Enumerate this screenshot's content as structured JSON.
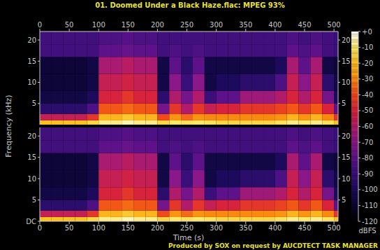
{
  "chart_data": {
    "type": "heatmap",
    "title": "01. Doomed Under a Black Haze.flac: MPEG 93%",
    "xlabel": "Time (s)",
    "ylabel": "Frequency (kHz)",
    "footer": "Produced by SOX on request by AUCDTECT TASK MANAGER",
    "xlim": [
      0,
      507
    ],
    "xticks": [
      0,
      50,
      100,
      150,
      200,
      250,
      300,
      350,
      400,
      450,
      500
    ],
    "x_edges": [
      0,
      20,
      40,
      60,
      80,
      100,
      120,
      140,
      160,
      180,
      200,
      220,
      240,
      260,
      280,
      300,
      320,
      340,
      360,
      380,
      400,
      420,
      440,
      460,
      480,
      500,
      507
    ],
    "y_edges": [
      0,
      1,
      2.5,
      5,
      8,
      12,
      16,
      19,
      22
    ],
    "colorbar": {
      "label": "dBFS",
      "range": [
        -120,
        0
      ],
      "ticks": [
        {
          "value": 0,
          "label": "+0"
        },
        -10,
        -20,
        -30,
        -40,
        -50,
        -60,
        -70,
        -80,
        -90,
        -100,
        -110,
        -120
      ]
    },
    "panels": [
      {
        "ylim": [
          0,
          22
        ],
        "yticks": [
          5,
          10,
          15,
          20
        ],
        "y2lim": [
          0,
          22
        ],
        "y2ticks": [
          5,
          10,
          15,
          20
        ],
        "cells": [
          [
            -20,
            -55,
            -95,
            -105,
            -108,
            -108,
            -88,
            -88
          ],
          [
            -20,
            -55,
            -95,
            -105,
            -108,
            -108,
            -88,
            -88
          ],
          [
            -20,
            -55,
            -95,
            -105,
            -108,
            -108,
            -88,
            -88
          ],
          [
            -20,
            -55,
            -95,
            -105,
            -108,
            -108,
            -88,
            -88
          ],
          [
            -15,
            -45,
            -85,
            -100,
            -105,
            -105,
            -88,
            -88
          ],
          [
            -8,
            -22,
            -38,
            -50,
            -55,
            -62,
            -80,
            -85
          ],
          [
            -8,
            -22,
            -38,
            -50,
            -55,
            -62,
            -80,
            -85
          ],
          [
            -5,
            -18,
            -35,
            -45,
            -52,
            -58,
            -78,
            -82
          ],
          [
            -8,
            -22,
            -38,
            -50,
            -55,
            -62,
            -80,
            -85
          ],
          [
            -8,
            -22,
            -38,
            -50,
            -55,
            -62,
            -80,
            -85
          ],
          [
            -15,
            -40,
            -75,
            -95,
            -105,
            -105,
            -88,
            -88
          ],
          [
            -10,
            -28,
            -45,
            -60,
            -70,
            -80,
            -85,
            -88
          ],
          [
            -12,
            -35,
            -60,
            -75,
            -90,
            -95,
            -88,
            -88
          ],
          [
            -10,
            -28,
            -45,
            -60,
            -70,
            -80,
            -85,
            -88
          ],
          [
            -12,
            -30,
            -55,
            -90,
            -105,
            -105,
            -88,
            -88
          ],
          [
            -15,
            -30,
            -50,
            -80,
            -100,
            -105,
            -88,
            -88
          ],
          [
            -15,
            -30,
            -50,
            -80,
            -100,
            -105,
            -88,
            -88
          ],
          [
            -15,
            -30,
            -45,
            -65,
            -95,
            -105,
            -88,
            -88
          ],
          [
            -15,
            -30,
            -45,
            -65,
            -95,
            -105,
            -88,
            -88
          ],
          [
            -15,
            -30,
            -45,
            -65,
            -95,
            -105,
            -88,
            -88
          ],
          [
            -12,
            -28,
            -42,
            -60,
            -85,
            -100,
            -88,
            -88
          ],
          [
            -8,
            -22,
            -38,
            -50,
            -55,
            -62,
            -80,
            -85
          ],
          [
            -10,
            -28,
            -45,
            -60,
            -70,
            -80,
            -85,
            -88
          ],
          [
            -8,
            -22,
            -38,
            -50,
            -55,
            -62,
            -80,
            -85
          ],
          [
            -12,
            -30,
            -50,
            -75,
            -95,
            -105,
            -88,
            -88
          ],
          [
            -20,
            -45,
            -80,
            -100,
            -105,
            -108,
            -90,
            -90
          ]
        ]
      },
      {
        "ylim": [
          0,
          22
        ],
        "yticks": [
          {
            "value": 0,
            "label": "DC"
          },
          5,
          10,
          15,
          20
        ],
        "y2lim": [
          0,
          22
        ],
        "y2ticks": [
          5,
          10,
          15,
          20
        ],
        "cells": [
          [
            -20,
            -55,
            -95,
            -105,
            -108,
            -108,
            -88,
            -88
          ],
          [
            -20,
            -55,
            -95,
            -105,
            -108,
            -108,
            -88,
            -88
          ],
          [
            -20,
            -55,
            -95,
            -105,
            -108,
            -108,
            -88,
            -88
          ],
          [
            -20,
            -55,
            -95,
            -105,
            -108,
            -108,
            -88,
            -88
          ],
          [
            -15,
            -45,
            -85,
            -100,
            -105,
            -105,
            -88,
            -88
          ],
          [
            -8,
            -22,
            -38,
            -50,
            -55,
            -62,
            -80,
            -85
          ],
          [
            -8,
            -22,
            -38,
            -50,
            -55,
            -62,
            -80,
            -85
          ],
          [
            -5,
            -18,
            -35,
            -45,
            -52,
            -58,
            -78,
            -82
          ],
          [
            -8,
            -22,
            -38,
            -50,
            -55,
            -62,
            -80,
            -85
          ],
          [
            -8,
            -22,
            -38,
            -50,
            -55,
            -62,
            -80,
            -85
          ],
          [
            -15,
            -40,
            -75,
            -95,
            -105,
            -105,
            -88,
            -88
          ],
          [
            -10,
            -28,
            -45,
            -60,
            -70,
            -80,
            -85,
            -88
          ],
          [
            -12,
            -35,
            -60,
            -75,
            -90,
            -95,
            -88,
            -88
          ],
          [
            -10,
            -28,
            -45,
            -60,
            -70,
            -80,
            -85,
            -88
          ],
          [
            -12,
            -30,
            -55,
            -90,
            -105,
            -105,
            -88,
            -88
          ],
          [
            -15,
            -30,
            -50,
            -80,
            -100,
            -105,
            -88,
            -88
          ],
          [
            -15,
            -30,
            -50,
            -80,
            -100,
            -105,
            -88,
            -88
          ],
          [
            -15,
            -30,
            -45,
            -65,
            -95,
            -105,
            -88,
            -88
          ],
          [
            -15,
            -30,
            -45,
            -65,
            -95,
            -105,
            -88,
            -88
          ],
          [
            -15,
            -30,
            -45,
            -65,
            -95,
            -105,
            -88,
            -88
          ],
          [
            -12,
            -28,
            -42,
            -60,
            -85,
            -100,
            -88,
            -88
          ],
          [
            -8,
            -22,
            -38,
            -50,
            -55,
            -62,
            -80,
            -85
          ],
          [
            -10,
            -28,
            -45,
            -60,
            -70,
            -80,
            -85,
            -88
          ],
          [
            -8,
            -22,
            -38,
            -50,
            -55,
            -62,
            -80,
            -85
          ],
          [
            -12,
            -30,
            -50,
            -75,
            -95,
            -105,
            -88,
            -88
          ],
          [
            -20,
            -45,
            -80,
            -100,
            -105,
            -108,
            -90,
            -90
          ]
        ]
      }
    ]
  }
}
